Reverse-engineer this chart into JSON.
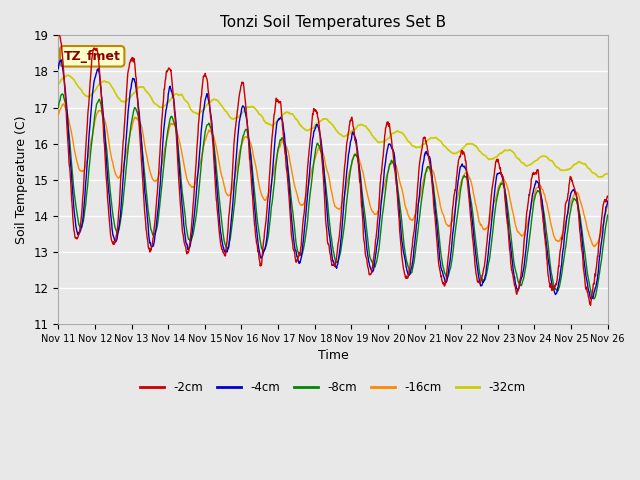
{
  "title": "Tonzi Soil Temperatures Set B",
  "xlabel": "Time",
  "ylabel": "Soil Temperature (C)",
  "ylim": [
    11.0,
    19.0
  ],
  "yticks": [
    11.0,
    12.0,
    13.0,
    14.0,
    15.0,
    16.0,
    17.0,
    18.0,
    19.0
  ],
  "xtick_labels": [
    "Nov 11",
    "Nov 12",
    "Nov 13",
    "Nov 14",
    "Nov 15",
    "Nov 16",
    "Nov 17",
    "Nov 18",
    "Nov 19",
    "Nov 20",
    "Nov 21",
    "Nov 22",
    "Nov 23",
    "Nov 24",
    "Nov 25",
    "Nov 26"
  ],
  "legend_labels": [
    "-2cm",
    "-4cm",
    "-8cm",
    "-16cm",
    "-32cm"
  ],
  "legend_colors": [
    "#cc0000",
    "#0000cc",
    "#008800",
    "#ff8800",
    "#cccc00"
  ],
  "line_widths": [
    1.0,
    1.0,
    1.0,
    1.0,
    1.2
  ],
  "annotation_text": "TZ_fmet",
  "annotation_bg": "#ffffcc",
  "annotation_border": "#bb8800",
  "annotation_text_color": "#880000",
  "background_color": "#e8e8e8",
  "fig_bg": "#e8e8e8"
}
